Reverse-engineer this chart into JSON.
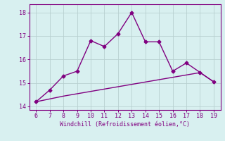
{
  "x_main": [
    6,
    7,
    8,
    9,
    10,
    11,
    12,
    13,
    14,
    15,
    16,
    17,
    18,
    19
  ],
  "y_main": [
    14.2,
    14.7,
    15.3,
    15.5,
    16.8,
    16.55,
    17.1,
    18.0,
    16.75,
    16.75,
    15.5,
    15.85,
    15.45,
    15.05
  ],
  "x_line2": [
    6,
    7,
    8,
    9,
    10,
    11,
    12,
    13,
    14,
    15,
    16,
    17,
    18,
    19
  ],
  "y_line2": [
    14.2,
    14.32,
    14.44,
    14.54,
    14.64,
    14.74,
    14.84,
    14.94,
    15.04,
    15.14,
    15.24,
    15.34,
    15.44,
    15.05
  ],
  "xlim": [
    5.5,
    19.5
  ],
  "ylim": [
    13.85,
    18.35
  ],
  "xticks": [
    6,
    7,
    8,
    9,
    10,
    11,
    12,
    13,
    14,
    15,
    16,
    17,
    18,
    19
  ],
  "yticks": [
    14,
    15,
    16,
    17,
    18
  ],
  "xlabel": "Windchill (Refroidissement éolien,°C)",
  "line_color": "#800080",
  "bg_color": "#d8f0f0",
  "grid_color": "#b8d0d0",
  "tick_color": "#800080",
  "label_color": "#800080",
  "marker": "D",
  "markersize": 2.5,
  "linewidth": 1.0
}
